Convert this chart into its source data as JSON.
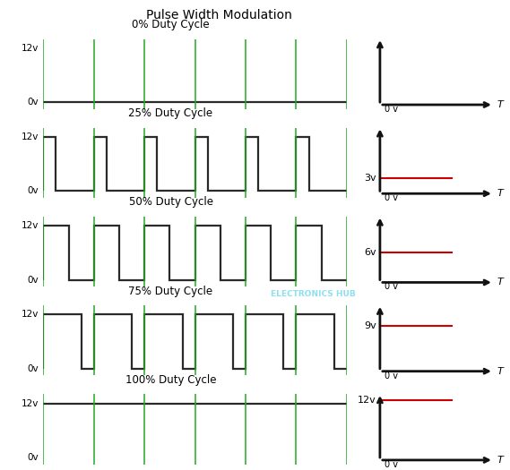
{
  "title": "Pulse Width Modulation",
  "title_fontsize": 10,
  "background_color": "#ffffff",
  "pwm_rows": [
    {
      "label": "0% Duty Cycle",
      "duty": 0.0,
      "avg_voltage": 0,
      "avg_label": ""
    },
    {
      "label": "25% Duty Cycle",
      "duty": 0.25,
      "avg_voltage": 3,
      "avg_label": "3v"
    },
    {
      "label": "50% Duty Cycle",
      "duty": 0.5,
      "avg_voltage": 6,
      "avg_label": "6v"
    },
    {
      "label": "75% Duty Cycle",
      "duty": 0.75,
      "avg_voltage": 9,
      "avg_label": "9v"
    },
    {
      "label": "100% Duty Cycle",
      "duty": 1.0,
      "avg_voltage": 12,
      "avg_label": "12v"
    }
  ],
  "num_periods": 6,
  "high_voltage": 12,
  "signal_color": "#2a2a2a",
  "green_line_color": "#22aa22",
  "red_line_color": "#cc0000",
  "axis_color": "#111111",
  "watermark": "ELECTRONICS HUB",
  "watermark_color": "#00bbdd",
  "watermark_alpha": 0.45,
  "watermark_fontsize": 6.5
}
